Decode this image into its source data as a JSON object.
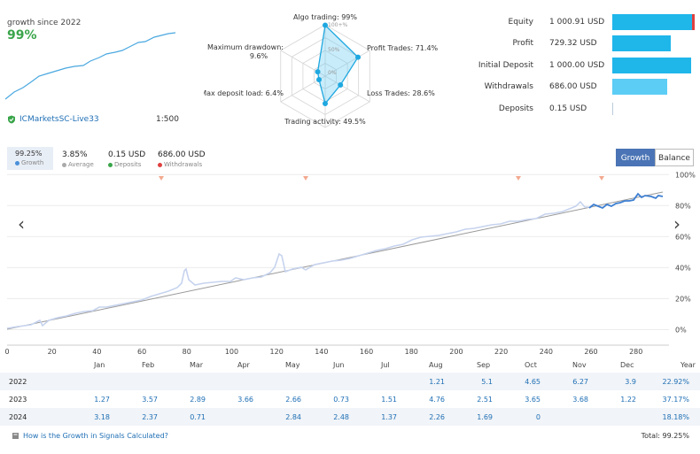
{
  "summary": {
    "growth_since": "growth since 2022",
    "growth_value": "99%",
    "broker": "ICMarketsSC-Live33",
    "leverage": "1:500"
  },
  "radar": {
    "labels": [
      {
        "title": "Algo trading: 99%"
      },
      {
        "title": "Profit Trades: 71.4%"
      },
      {
        "title": "Loss Trades: 28.6%"
      },
      {
        "title": "Trading activity: 49.5%"
      },
      {
        "title": "Max deposit load: 6.4%"
      },
      {
        "title": "Maximum drawdown:",
        "value": "9.6%"
      }
    ],
    "values": [
      99,
      71.4,
      28.6,
      49.5,
      6.4,
      9.6
    ],
    "rings": [
      "100+%",
      "50%",
      "0%"
    ]
  },
  "stats": [
    {
      "label": "Equity",
      "value": "1 000.91 USD",
      "bar": 1.0
    },
    {
      "label": "Profit",
      "value": "729.32 USD",
      "bar": 0.71
    },
    {
      "label": "Initial Deposit",
      "value": "1 000.00 USD",
      "bar": 0.98
    },
    {
      "label": "Withdrawals",
      "value": "686.00 USD",
      "bar": 0.67
    },
    {
      "label": "Deposits",
      "value": "0.15 USD",
      "bar": 0.0
    }
  ],
  "legend": {
    "growth": {
      "value": "99.25%",
      "label": "Growth",
      "color": "#4a90d9"
    },
    "average": {
      "value": "3.85%",
      "label": "Average",
      "color": "#aaaaaa"
    },
    "deposits": {
      "value": "0.15 USD",
      "label": "Deposits",
      "color": "#3aa54a"
    },
    "withdrawals": {
      "value": "686.00 USD",
      "label": "Withdrawals",
      "color": "#e04040"
    }
  },
  "tabs": {
    "growth": "Growth",
    "balance": "Balance"
  },
  "chart_data": {
    "type": "line",
    "x_ticks": [
      "0",
      "20",
      "40",
      "60",
      "80",
      "100",
      "120",
      "140",
      "160",
      "180",
      "200",
      "220",
      "240",
      "260",
      "280"
    ],
    "y_ticks": [
      "0%",
      "20%",
      "40%",
      "60%",
      "80%",
      "100%"
    ],
    "xlim": [
      0,
      288
    ],
    "ylim": [
      -10,
      103
    ]
  },
  "table": {
    "months": [
      "Jan",
      "Feb",
      "Mar",
      "Apr",
      "May",
      "Jun",
      "Jul",
      "Aug",
      "Sep",
      "Oct",
      "Nov",
      "Dec",
      "Year"
    ],
    "rows": [
      {
        "year": "2022",
        "values": [
          "",
          "",
          "",
          "",
          "",
          "",
          "",
          "1.21",
          "5.1",
          "4.65",
          "6.27",
          "3.9"
        ],
        "total": "22.92%"
      },
      {
        "year": "2023",
        "values": [
          "1.27",
          "3.57",
          "2.89",
          "3.66",
          "2.66",
          "0.73",
          "1.51",
          "4.76",
          "2.51",
          "3.65",
          "3.68",
          "1.22"
        ],
        "total": "37.17%"
      },
      {
        "year": "2024",
        "values": [
          "3.18",
          "2.37",
          "0.71",
          "",
          "2.84",
          "2.48",
          "1.37",
          "2.26",
          "1.69",
          "0",
          "",
          ""
        ],
        "total": "18.18%"
      }
    ]
  },
  "footer": {
    "link": "How is the Growth in Signals Calculated?",
    "total": "Total: 99.25%"
  }
}
